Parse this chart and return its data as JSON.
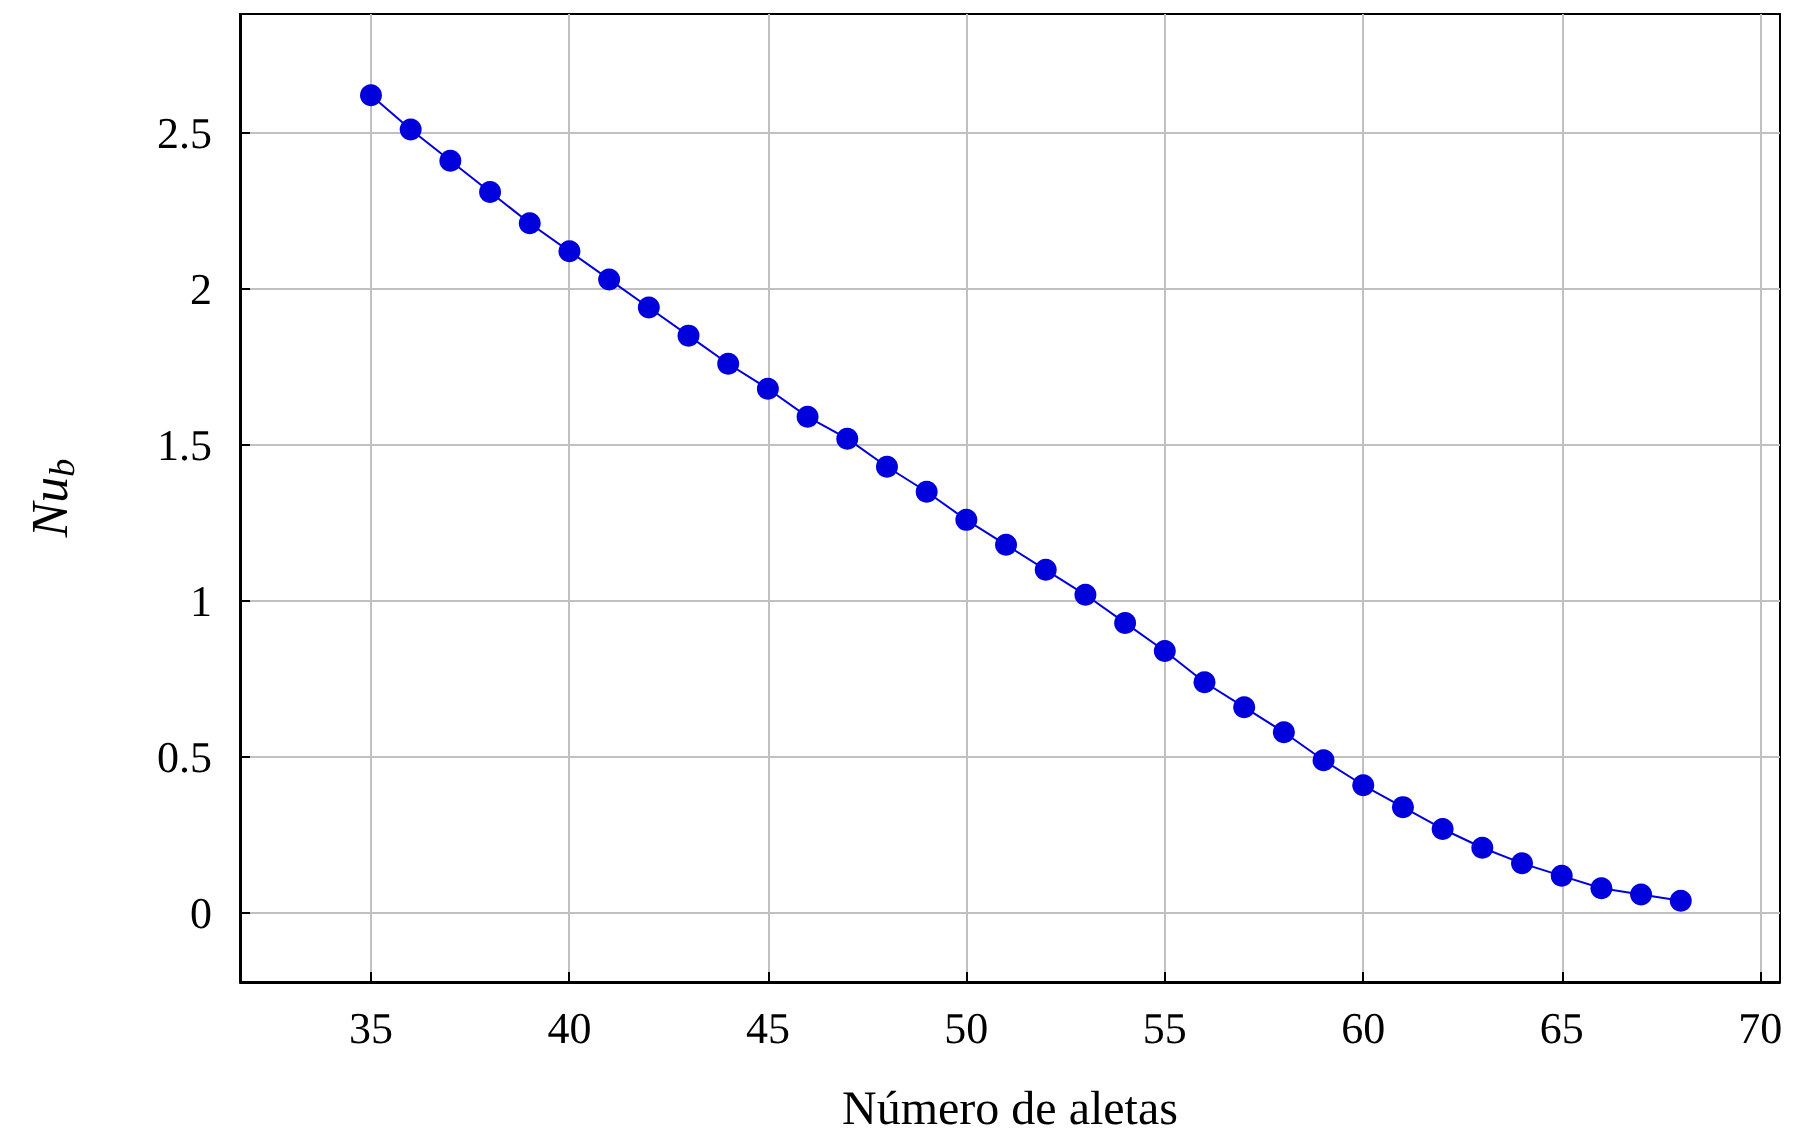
{
  "chart_data": {
    "type": "line",
    "xlabel": "Número de aletas",
    "ylabel": "Nu$_{b}$",
    "marker": "circle",
    "grid": true,
    "xlim": [
      31.7,
      70.5
    ],
    "xticks": [
      35,
      40,
      45,
      50,
      55,
      60,
      65,
      70
    ],
    "ylim": [
      -0.22,
      2.88
    ],
    "yticks": [
      0,
      0.5,
      1,
      1.5,
      2,
      2.5
    ],
    "series": [
      {
        "color": "#0000dd",
        "x": [
          35,
          36,
          37,
          38,
          39,
          40,
          41,
          42,
          43,
          44,
          45,
          46,
          47,
          48,
          49,
          50,
          51,
          52,
          53,
          54,
          55,
          56,
          57,
          58,
          59,
          60,
          61,
          62,
          63,
          64,
          65,
          66,
          67,
          68
        ],
        "values": [
          2.62,
          2.51,
          2.41,
          2.31,
          2.21,
          2.12,
          2.03,
          1.94,
          1.85,
          1.76,
          1.68,
          1.59,
          1.52,
          1.43,
          1.35,
          1.26,
          1.18,
          1.1,
          1.02,
          0.93,
          0.84,
          0.74,
          0.66,
          0.58,
          0.49,
          0.41,
          0.34,
          0.27,
          0.21,
          0.16,
          0.12,
          0.08,
          0.06,
          0.04
        ]
      }
    ]
  }
}
